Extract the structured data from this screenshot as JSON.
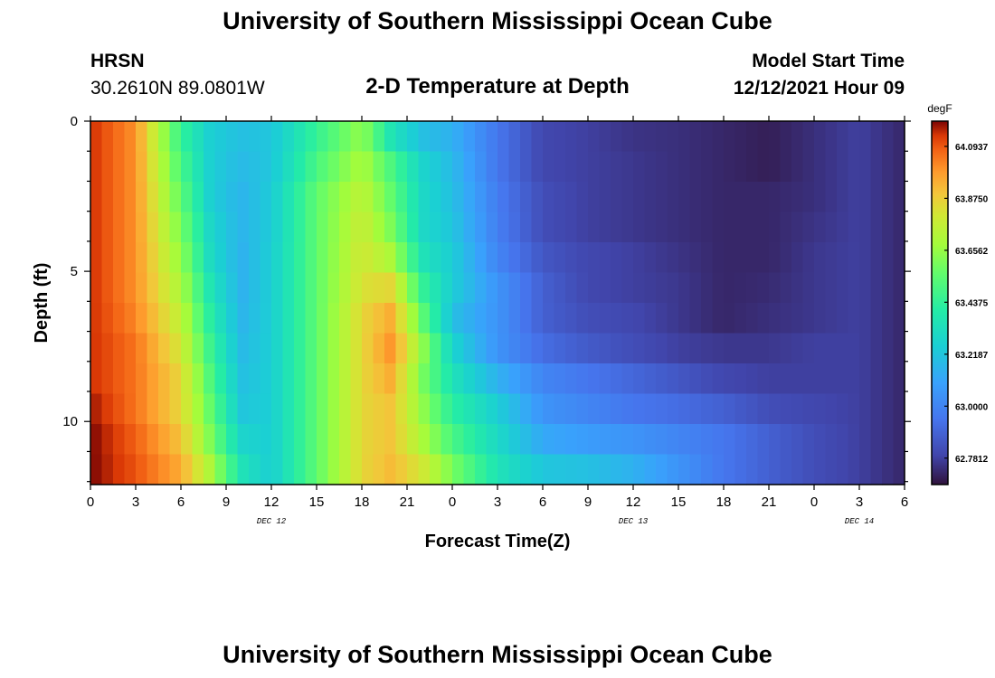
{
  "header": {
    "title": "University of Southern Mississippi Ocean Cube",
    "station": "HRSN",
    "coordinates": "30.2610N  89.0801W",
    "plot_title": "2-D Temperature at Depth",
    "model_start_label": "Model Start Time",
    "model_start_value": "12/12/2021 Hour 09"
  },
  "footer": {
    "title": "University of Southern Mississippi Ocean Cube"
  },
  "chart_data": {
    "type": "heatmap",
    "title": "2-D Temperature at Depth",
    "xlabel": "Forecast Time(Z)",
    "ylabel": "Depth (ft)",
    "x_range_hours": [
      0,
      54
    ],
    "y_range_ft": [
      0,
      12.1
    ],
    "x_tick_labels": [
      "0",
      "3",
      "6",
      "9",
      "12",
      "15",
      "18",
      "21",
      "0",
      "3",
      "6",
      "9",
      "12",
      "15",
      "18",
      "21",
      "0",
      "3",
      "6"
    ],
    "y_tick_labels": [
      "0",
      "5",
      "10"
    ],
    "date_labels": [
      {
        "label": "DEC 12",
        "hour": 12
      },
      {
        "label": "DEC 13",
        "hour": 36
      },
      {
        "label": "DEC 14",
        "hour": 51
      }
    ],
    "colorbar": {
      "unit": "degF",
      "min": 62.67,
      "max": 64.2,
      "tick_labels": [
        "64.0937",
        "63.8750",
        "63.6562",
        "63.4375",
        "63.2187",
        "63.0000",
        "62.7812"
      ],
      "tick_values": [
        64.0937,
        63.875,
        63.6562,
        63.4375,
        63.2187,
        63.0,
        62.7812
      ]
    },
    "depth_levels_ft": [
      0.5,
      1.5,
      2.5,
      3.5,
      4.5,
      5.5,
      6.5,
      7.5,
      8.5,
      9.5,
      10.5,
      11.5
    ],
    "time_keyframes_hours": [
      0,
      3,
      6,
      8,
      10,
      12,
      15,
      18,
      20,
      22,
      24,
      27,
      30,
      33,
      36,
      39,
      42,
      45,
      48,
      51,
      54
    ],
    "temperature_degF": [
      [
        64.15,
        64.0,
        63.45,
        63.25,
        63.2,
        63.22,
        63.45,
        63.65,
        63.35,
        63.2,
        63.15,
        62.95,
        62.8,
        62.78,
        62.75,
        62.74,
        62.72,
        62.7,
        62.74,
        62.78,
        62.72
      ],
      [
        64.15,
        64.0,
        63.5,
        63.25,
        63.18,
        63.22,
        63.5,
        63.7,
        63.5,
        63.28,
        63.18,
        62.95,
        62.8,
        62.78,
        62.76,
        62.74,
        62.72,
        62.7,
        62.74,
        62.78,
        62.72
      ],
      [
        64.15,
        64.0,
        63.55,
        63.25,
        63.16,
        63.24,
        63.55,
        63.75,
        63.55,
        63.3,
        63.2,
        62.97,
        62.82,
        62.78,
        62.76,
        62.74,
        62.72,
        62.72,
        62.74,
        62.78,
        62.72
      ],
      [
        64.15,
        64.0,
        63.6,
        63.28,
        63.16,
        63.24,
        63.55,
        63.78,
        63.6,
        63.3,
        63.22,
        62.98,
        62.82,
        62.78,
        62.76,
        62.74,
        62.72,
        62.72,
        62.75,
        62.78,
        62.72
      ],
      [
        64.15,
        64.0,
        63.65,
        63.3,
        63.15,
        63.25,
        63.55,
        63.8,
        63.7,
        63.35,
        63.25,
        63.0,
        62.85,
        62.8,
        62.78,
        62.75,
        62.72,
        62.72,
        62.76,
        62.78,
        62.72
      ],
      [
        64.15,
        64.0,
        63.7,
        63.35,
        63.15,
        63.25,
        63.55,
        63.82,
        63.85,
        63.45,
        63.25,
        63.05,
        62.88,
        62.8,
        62.78,
        62.76,
        62.72,
        62.73,
        62.76,
        62.78,
        62.72
      ],
      [
        64.15,
        64.02,
        63.75,
        63.4,
        63.16,
        63.25,
        63.55,
        63.85,
        63.95,
        63.55,
        63.2,
        63.05,
        62.88,
        62.82,
        62.8,
        62.76,
        62.72,
        62.74,
        62.76,
        62.78,
        62.72
      ],
      [
        64.15,
        64.05,
        63.8,
        63.45,
        63.18,
        63.25,
        63.55,
        63.85,
        64.0,
        63.65,
        63.28,
        63.05,
        62.92,
        62.86,
        62.82,
        62.78,
        62.76,
        62.76,
        62.78,
        62.78,
        62.72
      ],
      [
        64.15,
        64.05,
        63.85,
        63.5,
        63.2,
        63.25,
        63.55,
        63.85,
        63.95,
        63.6,
        63.35,
        63.15,
        63.0,
        62.95,
        62.9,
        62.85,
        62.8,
        62.78,
        62.78,
        62.78,
        62.72
      ],
      [
        64.18,
        64.05,
        63.85,
        63.55,
        63.22,
        63.25,
        63.55,
        63.85,
        63.9,
        63.65,
        63.42,
        63.25,
        63.05,
        63.0,
        62.95,
        62.92,
        62.88,
        62.82,
        62.8,
        62.78,
        62.72
      ],
      [
        64.2,
        64.08,
        63.9,
        63.6,
        63.28,
        63.25,
        63.55,
        63.85,
        63.9,
        63.7,
        63.5,
        63.3,
        63.12,
        63.08,
        63.05,
        63.0,
        62.95,
        62.88,
        62.82,
        62.78,
        62.72
      ],
      [
        64.2,
        64.1,
        63.95,
        63.7,
        63.35,
        63.25,
        63.55,
        63.85,
        63.92,
        63.8,
        63.6,
        63.35,
        63.22,
        63.2,
        63.15,
        63.05,
        62.95,
        62.88,
        62.82,
        62.78,
        62.72
      ]
    ]
  }
}
